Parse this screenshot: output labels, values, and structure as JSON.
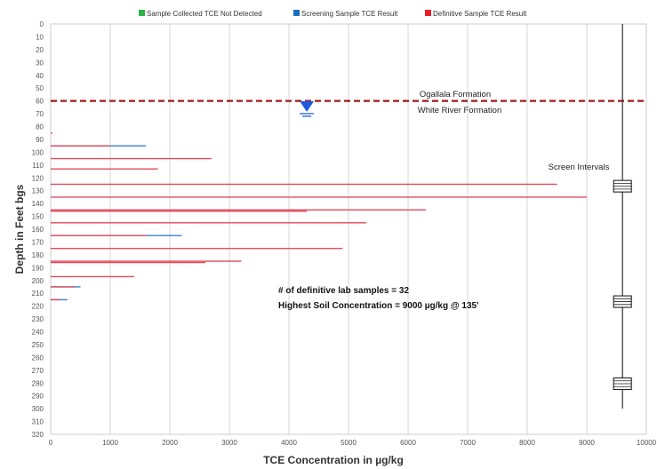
{
  "chart_data": {
    "type": "bar",
    "orientation": "horizontal",
    "title": "",
    "xlabel": "TCE Concentration in µg/kg",
    "ylabel": "Depth in Feet bgs",
    "xlim": [
      0,
      10000
    ],
    "ylim": [
      0,
      320
    ],
    "y_inverted": true,
    "x_ticks": [
      0,
      1000,
      2000,
      3000,
      4000,
      5000,
      6000,
      7000,
      8000,
      9000,
      10000
    ],
    "x_tick_labels": [
      "0",
      "1000",
      "2000",
      "3000",
      "4000",
      "5000",
      "6000",
      "7000",
      "8000",
      "9000",
      "10000"
    ],
    "y_ticks": [
      0,
      10,
      20,
      30,
      40,
      50,
      60,
      70,
      80,
      90,
      100,
      110,
      120,
      130,
      140,
      150,
      160,
      170,
      180,
      190,
      200,
      210,
      220,
      230,
      240,
      250,
      260,
      270,
      280,
      290,
      300,
      310,
      320
    ],
    "y_tick_labels": [
      "0",
      "10",
      "20",
      "30",
      "40",
      "50",
      "60",
      "70",
      "80",
      "90",
      "100",
      "110",
      "120",
      "130",
      "140",
      "150",
      "160",
      "170",
      "180",
      "190",
      "200",
      "210",
      "220",
      "230",
      "240",
      "250",
      "260",
      "270",
      "280",
      "290",
      "300",
      "310",
      "320"
    ],
    "grid": "vertical",
    "legend_position": "top",
    "legend": [
      {
        "label": "Sample Collected TCE Not Detected",
        "color": "#2db34a"
      },
      {
        "label": "Screening Sample TCE Result",
        "color": "#1f6fbf"
      },
      {
        "label": "Definitive Sample TCE Result",
        "color": "#e8202a"
      }
    ],
    "series": [
      {
        "name": "Screening Sample TCE Result",
        "color": "#3a7fd0",
        "points": [
          {
            "depth": 95,
            "value": 1600
          },
          {
            "depth": 165,
            "value": 2200
          },
          {
            "depth": 205,
            "value": 500
          },
          {
            "depth": 215,
            "value": 280
          }
        ]
      },
      {
        "name": "Definitive Sample TCE Result",
        "color": "#e34a5a",
        "points": [
          {
            "depth": 85,
            "value": 30
          },
          {
            "depth": 95,
            "value": 1000
          },
          {
            "depth": 105,
            "value": 2700
          },
          {
            "depth": 113,
            "value": 1800
          },
          {
            "depth": 125,
            "value": 8500
          },
          {
            "depth": 135,
            "value": 9000
          },
          {
            "depth": 145,
            "value": 6300
          },
          {
            "depth": 146,
            "value": 4300
          },
          {
            "depth": 155,
            "value": 5300
          },
          {
            "depth": 165,
            "value": 1600
          },
          {
            "depth": 175,
            "value": 4900
          },
          {
            "depth": 185,
            "value": 3200
          },
          {
            "depth": 186,
            "value": 2600
          },
          {
            "depth": 197,
            "value": 1400
          },
          {
            "depth": 205,
            "value": 400
          },
          {
            "depth": 215,
            "value": 150
          }
        ]
      }
    ],
    "formation_boundary": {
      "depth": 60,
      "color": "#a01818",
      "upper_label": "Ogallala Formation",
      "lower_label": "White River Formation"
    },
    "water_table": {
      "depth": 65,
      "x": 4300,
      "color": "#1e5adc"
    },
    "well": {
      "x": 9600,
      "top_depth": 0,
      "bottom_depth": 300,
      "label": "Screen Intervals",
      "screens": [
        {
          "top": 122,
          "bottom": 131
        },
        {
          "top": 212,
          "bottom": 221
        },
        {
          "top": 276,
          "bottom": 285
        }
      ]
    },
    "annotations": [
      "# of definitive lab samples = 32",
      "Highest Soil Concentration = 9000 µg/kg @ 135'"
    ]
  }
}
